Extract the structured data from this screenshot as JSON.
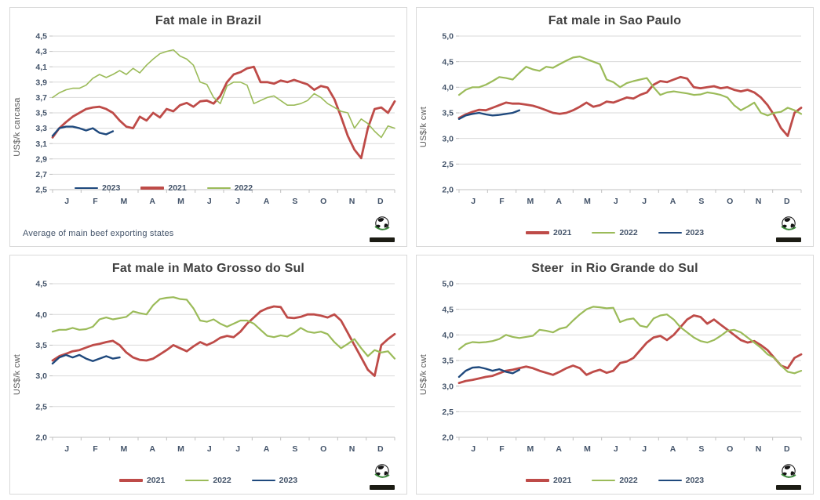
{
  "page": {
    "background": "#ffffff"
  },
  "colors": {
    "series_2021": "#be4b48",
    "series_2022": "#9bbb59",
    "series_2023": "#1f497d",
    "grid": "#d9d9d9",
    "axis_line": "#c0c0c0",
    "axis_text": "#44546a",
    "title_text": "#404040",
    "ylabel_text": "#595959",
    "logo_green": "#3a8a3a"
  },
  "icons": {
    "logo": "world-globe-logo"
  },
  "chart_data": [
    {
      "type": "line",
      "title": "Fat male in Brazil",
      "ylabel": "US$/k carcasa",
      "footnote": "Average  of main beef exporting states",
      "ylim": [
        2.5,
        4.5
      ],
      "ystep": 0.2,
      "ytick_labels": [
        "4,5",
        "4,3",
        "4,1",
        "3,9",
        "3,7",
        "3,5",
        "3,3",
        "3,1",
        "2,9",
        "2,7",
        "2,5"
      ],
      "x_labels": [
        "J",
        "F",
        "M",
        "A",
        "M",
        "J",
        "J",
        "A",
        "S",
        "O",
        "N",
        "D"
      ],
      "grid": true,
      "legend_position": "inside-left",
      "legend_order": [
        "2023",
        "2021",
        "2022"
      ],
      "series": [
        {
          "name": "2021",
          "color": "#be4b48",
          "width": 2.8,
          "values": [
            3.18,
            3.3,
            3.38,
            3.45,
            3.5,
            3.55,
            3.57,
            3.58,
            3.55,
            3.5,
            3.4,
            3.32,
            3.3,
            3.45,
            3.4,
            3.5,
            3.44,
            3.55,
            3.52,
            3.6,
            3.63,
            3.58,
            3.65,
            3.66,
            3.62,
            3.72,
            3.9,
            4.0,
            4.03,
            4.08,
            4.1,
            3.9,
            3.9,
            3.88,
            3.92,
            3.9,
            3.93,
            3.9,
            3.87,
            3.8,
            3.85,
            3.83,
            3.68,
            3.45,
            3.2,
            3.02,
            2.91,
            3.3,
            3.55,
            3.57,
            3.5,
            3.65
          ]
        },
        {
          "name": "2022",
          "color": "#9bbb59",
          "width": 1.6,
          "values": [
            3.7,
            3.76,
            3.8,
            3.82,
            3.82,
            3.86,
            3.95,
            4.0,
            3.96,
            4.0,
            4.05,
            4.0,
            4.08,
            4.02,
            4.12,
            4.2,
            4.27,
            4.3,
            4.32,
            4.24,
            4.2,
            4.12,
            3.9,
            3.87,
            3.7,
            3.62,
            3.85,
            3.9,
            3.9,
            3.86,
            3.62,
            3.66,
            3.7,
            3.72,
            3.66,
            3.6,
            3.6,
            3.62,
            3.66,
            3.75,
            3.7,
            3.62,
            3.57,
            3.52,
            3.5,
            3.3,
            3.42,
            3.36,
            3.26,
            3.18,
            3.33,
            3.3
          ]
        },
        {
          "name": "2023",
          "color": "#1f497d",
          "width": 2.4,
          "values": [
            3.2,
            3.3,
            3.32,
            3.32,
            3.3,
            3.27,
            3.3,
            3.24,
            3.22,
            3.26
          ]
        }
      ]
    },
    {
      "type": "line",
      "title": "Fat male in Sao Paulo",
      "ylabel": "US$/k cwt",
      "ylim": [
        2.0,
        5.0
      ],
      "ystep": 0.5,
      "ytick_labels": [
        "5,0",
        "4,5",
        "4,0",
        "3,5",
        "3,0",
        "2,5",
        "2,0"
      ],
      "x_labels": [
        "J",
        "F",
        "M",
        "A",
        "M",
        "J",
        "J",
        "A",
        "S",
        "O",
        "N",
        "D"
      ],
      "grid": true,
      "legend_position": "bottom-center",
      "legend_order": [
        "2021",
        "2022",
        "2023"
      ],
      "series": [
        {
          "name": "2021",
          "color": "#be4b48",
          "width": 2.8,
          "values": [
            3.4,
            3.47,
            3.52,
            3.56,
            3.55,
            3.6,
            3.65,
            3.7,
            3.68,
            3.68,
            3.66,
            3.64,
            3.6,
            3.55,
            3.5,
            3.48,
            3.5,
            3.55,
            3.62,
            3.7,
            3.62,
            3.65,
            3.72,
            3.7,
            3.75,
            3.8,
            3.78,
            3.85,
            3.9,
            4.05,
            4.12,
            4.1,
            4.15,
            4.2,
            4.17,
            4.0,
            3.98,
            4.0,
            4.02,
            3.98,
            4.0,
            3.95,
            3.92,
            3.95,
            3.9,
            3.8,
            3.65,
            3.45,
            3.2,
            3.05,
            3.5,
            3.6
          ]
        },
        {
          "name": "2022",
          "color": "#9bbb59",
          "width": 2.2,
          "values": [
            3.85,
            3.95,
            4.0,
            4.0,
            4.05,
            4.12,
            4.2,
            4.18,
            4.15,
            4.28,
            4.4,
            4.35,
            4.32,
            4.4,
            4.38,
            4.45,
            4.52,
            4.58,
            4.6,
            4.55,
            4.5,
            4.45,
            4.15,
            4.1,
            4.0,
            4.08,
            4.12,
            4.15,
            4.18,
            4.0,
            3.85,
            3.9,
            3.92,
            3.9,
            3.88,
            3.85,
            3.86,
            3.9,
            3.88,
            3.85,
            3.8,
            3.65,
            3.55,
            3.62,
            3.7,
            3.5,
            3.45,
            3.5,
            3.52,
            3.6,
            3.55,
            3.48
          ]
        },
        {
          "name": "2023",
          "color": "#1f497d",
          "width": 2.4,
          "values": [
            3.38,
            3.45,
            3.48,
            3.5,
            3.47,
            3.45,
            3.46,
            3.48,
            3.5,
            3.55
          ]
        }
      ]
    },
    {
      "type": "line",
      "title": "Fat male in Mato Grosso do Sul",
      "ylabel": "US$/k cwt",
      "ylim": [
        2.0,
        4.5
      ],
      "ystep": 0.5,
      "ytick_labels": [
        "4,5",
        "4,0",
        "3,5",
        "3,0",
        "2,5",
        "2,0"
      ],
      "x_labels": [
        "J",
        "F",
        "M",
        "A",
        "M",
        "J",
        "J",
        "A",
        "S",
        "O",
        "N",
        "D"
      ],
      "grid": true,
      "legend_position": "bottom-center",
      "legend_order": [
        "2021",
        "2022",
        "2023"
      ],
      "series": [
        {
          "name": "2021",
          "color": "#be4b48",
          "width": 2.8,
          "values": [
            3.25,
            3.32,
            3.36,
            3.4,
            3.42,
            3.46,
            3.5,
            3.52,
            3.55,
            3.57,
            3.5,
            3.38,
            3.3,
            3.26,
            3.25,
            3.28,
            3.35,
            3.42,
            3.5,
            3.45,
            3.4,
            3.48,
            3.55,
            3.5,
            3.55,
            3.62,
            3.65,
            3.63,
            3.72,
            3.85,
            3.95,
            4.05,
            4.1,
            4.13,
            4.12,
            3.95,
            3.94,
            3.96,
            4.0,
            4.0,
            3.98,
            3.95,
            4.0,
            3.9,
            3.7,
            3.5,
            3.3,
            3.1,
            3.0,
            3.5,
            3.6,
            3.68
          ]
        },
        {
          "name": "2022",
          "color": "#9bbb59",
          "width": 2.2,
          "values": [
            3.72,
            3.75,
            3.75,
            3.78,
            3.75,
            3.76,
            3.8,
            3.92,
            3.95,
            3.92,
            3.94,
            3.96,
            4.05,
            4.02,
            4.0,
            4.15,
            4.25,
            4.27,
            4.28,
            4.25,
            4.24,
            4.1,
            3.9,
            3.88,
            3.92,
            3.85,
            3.8,
            3.85,
            3.9,
            3.9,
            3.85,
            3.75,
            3.65,
            3.63,
            3.66,
            3.64,
            3.7,
            3.78,
            3.72,
            3.7,
            3.72,
            3.68,
            3.55,
            3.45,
            3.52,
            3.6,
            3.45,
            3.32,
            3.42,
            3.38,
            3.4,
            3.28
          ]
        },
        {
          "name": "2023",
          "color": "#1f497d",
          "width": 2.4,
          "values": [
            3.2,
            3.3,
            3.34,
            3.3,
            3.34,
            3.28,
            3.24,
            3.28,
            3.32,
            3.28,
            3.3
          ]
        }
      ]
    },
    {
      "type": "line",
      "title": "Steer  in Rio Grande do Sul",
      "ylabel": "US$/k cwt",
      "ylim": [
        2.0,
        5.0
      ],
      "ystep": 0.5,
      "ytick_labels": [
        "5,0",
        "4,5",
        "4,0",
        "3,5",
        "3,0",
        "2,5",
        "2,0"
      ],
      "x_labels": [
        "J",
        "F",
        "M",
        "A",
        "M",
        "J",
        "J",
        "A",
        "S",
        "O",
        "N",
        "D"
      ],
      "grid": true,
      "legend_position": "bottom-center",
      "legend_order": [
        "2021",
        "2022",
        "2023"
      ],
      "series": [
        {
          "name": "2021",
          "color": "#be4b48",
          "width": 2.8,
          "values": [
            3.06,
            3.1,
            3.12,
            3.15,
            3.18,
            3.2,
            3.25,
            3.3,
            3.32,
            3.35,
            3.38,
            3.35,
            3.3,
            3.26,
            3.22,
            3.28,
            3.35,
            3.4,
            3.35,
            3.22,
            3.28,
            3.32,
            3.26,
            3.3,
            3.45,
            3.48,
            3.55,
            3.7,
            3.85,
            3.95,
            3.98,
            3.9,
            4.0,
            4.15,
            4.3,
            4.38,
            4.35,
            4.22,
            4.3,
            4.2,
            4.1,
            4.0,
            3.9,
            3.85,
            3.88,
            3.8,
            3.7,
            3.55,
            3.4,
            3.35,
            3.55,
            3.62
          ]
        },
        {
          "name": "2022",
          "color": "#9bbb59",
          "width": 2.2,
          "values": [
            3.72,
            3.82,
            3.86,
            3.85,
            3.86,
            3.88,
            3.92,
            4.0,
            3.96,
            3.94,
            3.96,
            3.98,
            4.1,
            4.08,
            4.05,
            4.12,
            4.15,
            4.28,
            4.4,
            4.5,
            4.55,
            4.54,
            4.52,
            4.53,
            4.25,
            4.3,
            4.32,
            4.18,
            4.15,
            4.32,
            4.38,
            4.4,
            4.3,
            4.15,
            4.05,
            3.95,
            3.88,
            3.85,
            3.9,
            3.98,
            4.08,
            4.1,
            4.05,
            3.95,
            3.85,
            3.75,
            3.62,
            3.55,
            3.4,
            3.28,
            3.25,
            3.3
          ]
        },
        {
          "name": "2023",
          "color": "#1f497d",
          "width": 2.4,
          "values": [
            3.18,
            3.3,
            3.36,
            3.37,
            3.34,
            3.3,
            3.33,
            3.28,
            3.25,
            3.32
          ]
        }
      ]
    }
  ]
}
